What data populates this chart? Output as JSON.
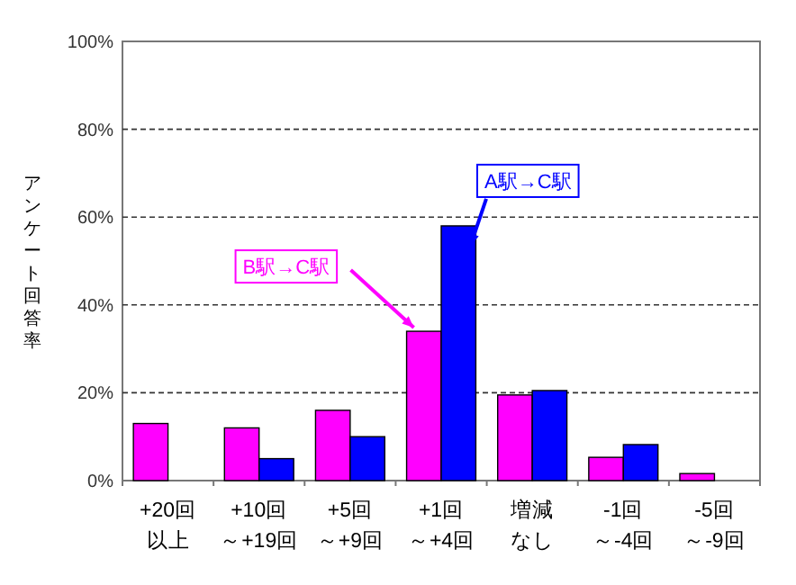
{
  "chart_data": {
    "type": "bar",
    "ylabel": "アンケート回答率",
    "categories": [
      "+20回以上",
      "+10回～+19回",
      "+5回～+9回",
      "+1回～+4回",
      "増減なし",
      "-1回～-4回",
      "-5回～-9回"
    ],
    "series": [
      {
        "name": "B駅→C駅",
        "color": "#ff00ff",
        "values": [
          13,
          12,
          16,
          34,
          19.5,
          5.3,
          1.6
        ]
      },
      {
        "name": "A駅→C駅",
        "color": "#0000ff",
        "values": [
          null,
          5,
          10,
          58,
          20.5,
          8.2,
          null
        ]
      }
    ],
    "ylim": [
      0,
      100
    ],
    "yticks": [
      {
        "value": 0,
        "label": "0%"
      },
      {
        "value": 20,
        "label": "20%"
      },
      {
        "value": 40,
        "label": "40%"
      },
      {
        "value": 60,
        "label": "60%"
      },
      {
        "value": 80,
        "label": "80%"
      },
      {
        "value": 100,
        "label": "100%"
      }
    ],
    "grid": "y",
    "line_style": "dashed"
  }
}
